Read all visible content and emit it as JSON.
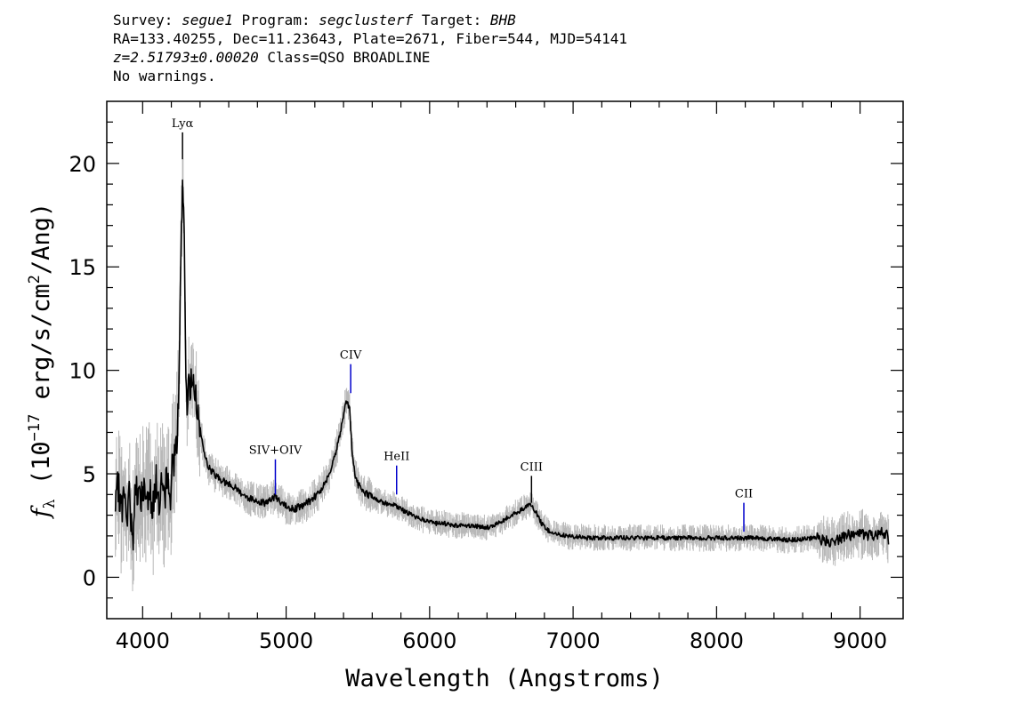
{
  "header": {
    "survey_label": "Survey:",
    "survey": "segue1",
    "program_label": "Program:",
    "program": "segclusterf",
    "target_label": "Target:",
    "target": "BHB",
    "line2": "RA=133.40255, Dec=11.23643, Plate=2671, Fiber=544, MJD=54141",
    "redshift": "z=2.51793±0.00020",
    "class": "Class=QSO BROADLINE",
    "warnings": "No warnings."
  },
  "chart_data": {
    "type": "line",
    "xlabel": "Wavelength (Angstroms)",
    "ylabel": "fλ (10^-17 erg/s/cm²/Ang)",
    "xlim": [
      3750,
      9300
    ],
    "ylim": [
      -2,
      23
    ],
    "xticks": [
      4000,
      5000,
      6000,
      7000,
      8000,
      9000
    ],
    "yticks": [
      0,
      5,
      10,
      15,
      20
    ],
    "grid": false,
    "series": [
      {
        "role": "flux",
        "color": "#000000",
        "x": [
          3810,
          3830,
          3850,
          3870,
          3890,
          3910,
          3930,
          3950,
          3970,
          3990,
          4010,
          4030,
          4050,
          4070,
          4090,
          4110,
          4130,
          4150,
          4170,
          4190,
          4210,
          4225,
          4240,
          4250,
          4260,
          4270,
          4280,
          4290,
          4300,
          4310,
          4320,
          4330,
          4340,
          4350,
          4370,
          4390,
          4410,
          4430,
          4450,
          4470,
          4500,
          4550,
          4600,
          4650,
          4700,
          4750,
          4800,
          4850,
          4900,
          4930,
          4960,
          5000,
          5050,
          5100,
          5150,
          5200,
          5250,
          5300,
          5350,
          5380,
          5400,
          5420,
          5440,
          5450,
          5460,
          5480,
          5500,
          5530,
          5570,
          5620,
          5680,
          5750,
          5800,
          5850,
          5900,
          5950,
          6000,
          6050,
          6100,
          6200,
          6300,
          6400,
          6450,
          6500,
          6550,
          6600,
          6650,
          6700,
          6720,
          6750,
          6780,
          6820,
          6870,
          6950,
          7100,
          7300,
          7500,
          7700,
          7900,
          8100,
          8300,
          8500,
          8700,
          8800,
          8900,
          9000,
          9100,
          9150,
          9180,
          9200
        ],
        "y": [
          3.0,
          4.5,
          3.2,
          4.0,
          2.5,
          4.2,
          1.5,
          4.6,
          3.5,
          4.0,
          4.2,
          3.8,
          4.5,
          3.2,
          4.8,
          3.6,
          4.4,
          3.5,
          5.0,
          3.8,
          5.5,
          6.0,
          7.0,
          8.5,
          12.5,
          17.0,
          19.2,
          16.0,
          10.5,
          8.0,
          9.5,
          8.8,
          9.7,
          9.8,
          8.8,
          7.5,
          6.8,
          6.0,
          5.5,
          5.2,
          5.0,
          4.7,
          4.5,
          4.3,
          4.0,
          3.8,
          3.7,
          3.6,
          3.8,
          3.9,
          3.6,
          3.4,
          3.3,
          3.4,
          3.6,
          3.9,
          4.3,
          5.0,
          6.2,
          7.0,
          7.8,
          8.5,
          8.3,
          7.2,
          6.0,
          5.0,
          4.5,
          4.2,
          4.0,
          3.8,
          3.6,
          3.5,
          3.3,
          3.1,
          2.9,
          2.8,
          2.7,
          2.6,
          2.6,
          2.5,
          2.5,
          2.4,
          2.5,
          2.7,
          2.9,
          3.1,
          3.3,
          3.5,
          3.4,
          3.0,
          2.6,
          2.3,
          2.1,
          2.0,
          1.9,
          1.9,
          1.9,
          1.9,
          1.9,
          1.9,
          1.9,
          1.8,
          1.9,
          1.7,
          2.0,
          2.1,
          2.0,
          2.2,
          2.1,
          1.8
        ]
      }
    ],
    "lines": [
      {
        "label": "Lyα",
        "x": 4278,
        "y": 20.2,
        "y_top": 21.5,
        "color": "#000000"
      },
      {
        "label": "SIV+OIV",
        "x": 4925,
        "y": 4.0,
        "y_top": 5.7,
        "color": "#0000cc"
      },
      {
        "label": "CIV",
        "x": 5450,
        "y": 8.9,
        "y_top": 10.3,
        "color": "#0000cc"
      },
      {
        "label": "HeII",
        "x": 5770,
        "y": 4.0,
        "y_top": 5.4,
        "color": "#0000cc"
      },
      {
        "label": "CIII",
        "x": 6710,
        "y": 3.6,
        "y_top": 4.9,
        "color": "#000000"
      },
      {
        "label": "CII",
        "x": 8190,
        "y": 2.2,
        "y_top": 3.6,
        "color": "#0000cc"
      }
    ],
    "colors": {
      "flux": "#000000",
      "error": "#b8b8b8",
      "line_marker_blue": "#0000cc"
    }
  }
}
